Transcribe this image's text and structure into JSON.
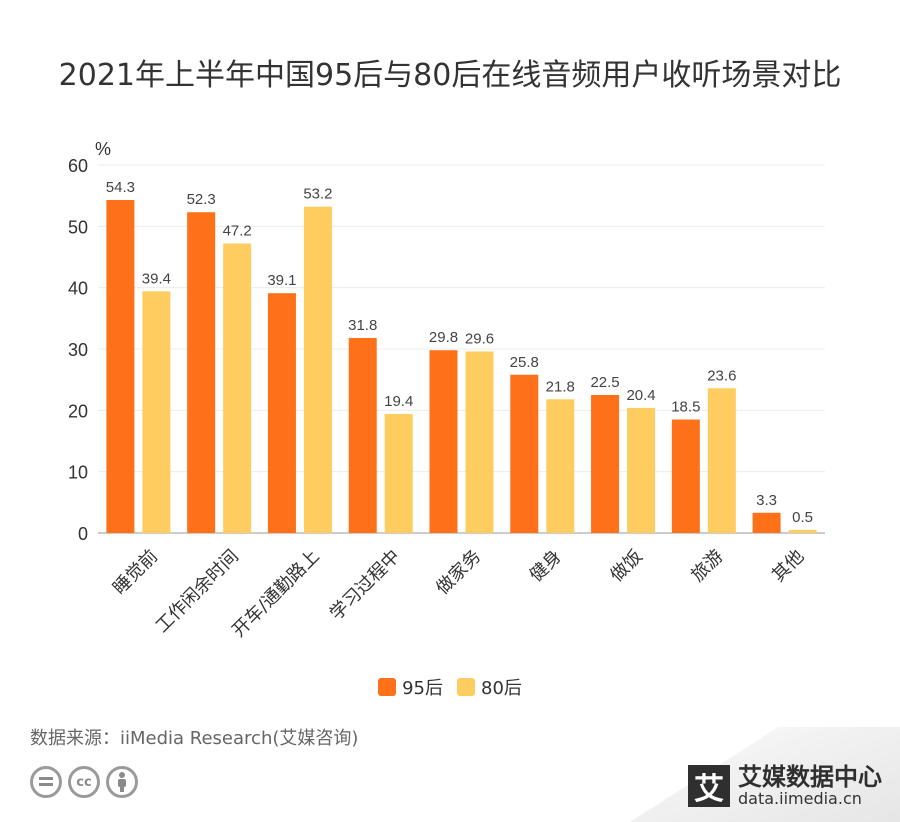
{
  "title": "2021年上半年中国95后与80后在线音频用户收听场景对比",
  "source": "数据来源：iiMedia Research(艾媒咨询)",
  "brand": {
    "logo_char": "艾",
    "name": "艾媒数据中心",
    "url": "data.iimedia.cn"
  },
  "license_icons": [
    "=",
    "cc",
    "person"
  ],
  "chart_data": {
    "type": "bar",
    "unit_label": "%",
    "categories": [
      "睡觉前",
      "工作闲余时间",
      "开车/通勤路上",
      "学习过程中",
      "做家务",
      "健身",
      "做饭",
      "旅游",
      "其他"
    ],
    "series": [
      {
        "name": "95后",
        "color": "#FF7118",
        "values": [
          54.3,
          52.3,
          39.1,
          31.8,
          29.8,
          25.8,
          22.5,
          18.5,
          3.3
        ]
      },
      {
        "name": "80后",
        "color": "#FFCD5F",
        "values": [
          39.4,
          47.2,
          53.2,
          19.4,
          29.6,
          21.8,
          20.4,
          23.6,
          0.5
        ]
      }
    ],
    "yticks": [
      0,
      10,
      20,
      30,
      40,
      50,
      60
    ],
    "ylim": [
      0,
      60
    ],
    "grid": true,
    "legend_position": "bottom"
  }
}
